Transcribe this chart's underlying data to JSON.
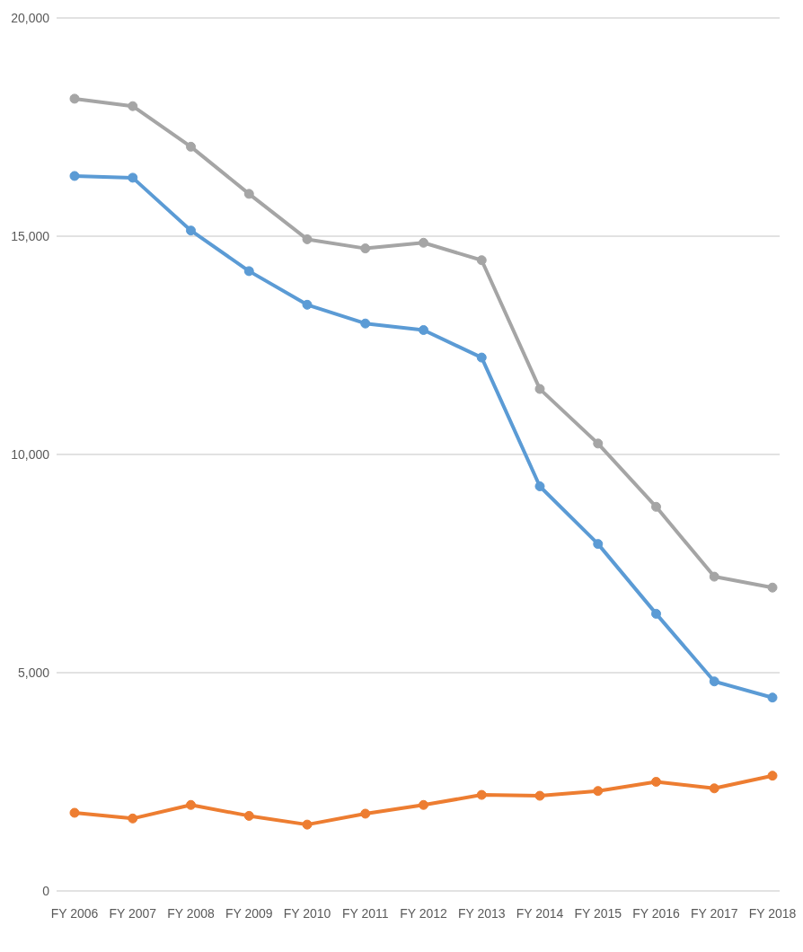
{
  "chart_data": {
    "type": "line",
    "categories": [
      "FY 2006",
      "FY 2007",
      "FY 2008",
      "FY 2009",
      "FY 2010",
      "FY 2011",
      "FY 2012",
      "FY 2013",
      "FY 2014",
      "FY 2015",
      "FY 2016",
      "FY 2017",
      "FY 2018"
    ],
    "series": [
      {
        "color": "#a5a5a5",
        "values": [
          18150,
          17980,
          17050,
          15970,
          14930,
          14720,
          14850,
          14450,
          11500,
          10250,
          8800,
          7200,
          6950
        ]
      },
      {
        "color": "#5b9bd5",
        "values": [
          16380,
          16340,
          15130,
          14200,
          13430,
          13000,
          12850,
          12220,
          9270,
          7950,
          6350,
          4800,
          4430
        ]
      },
      {
        "color": "#ed7d31",
        "values": [
          1790,
          1660,
          1970,
          1720,
          1520,
          1770,
          1970,
          2200,
          2180,
          2290,
          2500,
          2350,
          2640
        ]
      }
    ],
    "ylim": [
      0,
      20000
    ],
    "yticks": [
      0,
      {
        "value": 5000,
        "label": "5,000"
      },
      {
        "value": 10000,
        "label": "10,000"
      },
      {
        "value": 15000,
        "label": "15,000"
      },
      {
        "value": 20000,
        "label": "20,000"
      }
    ],
    "grid": "y",
    "marker": "circle",
    "line_style": "solid"
  }
}
